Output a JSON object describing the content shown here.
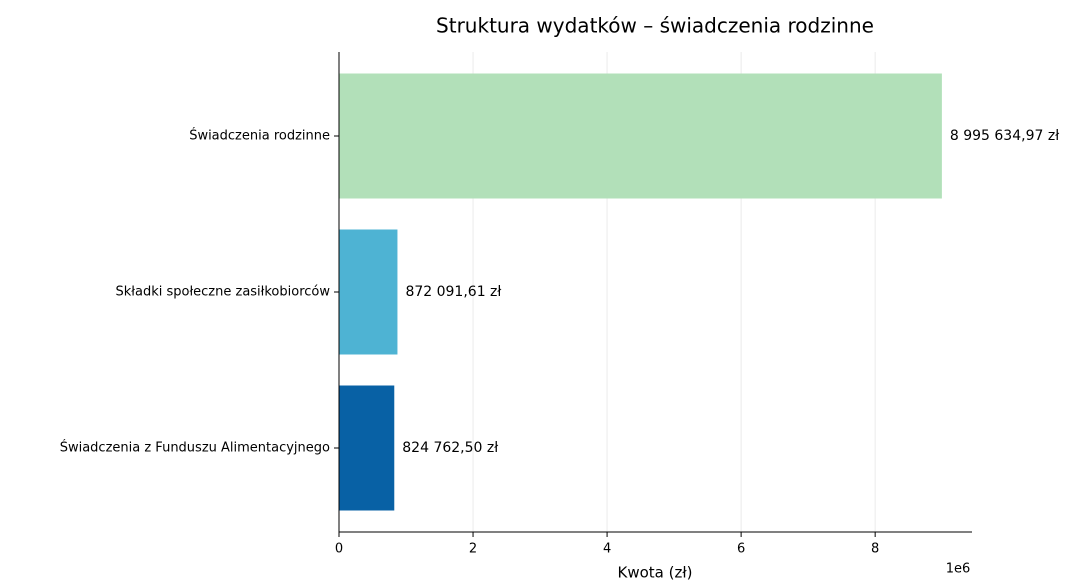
{
  "chart_data": {
    "type": "barh",
    "title": "Struktura wydatków – świadczenia rodzinne",
    "x_label": "Kwota (zł)",
    "x_offset_label": "1e6",
    "categories": [
      "Świadczenia rodzinne",
      "Składki społeczne zasiłkobiorców",
      "Świadczenia z Funduszu Alimentacyjnego"
    ],
    "values": [
      8995634.97,
      872091.61,
      824762.5
    ],
    "value_labels": [
      "8 995 634,97 zł",
      "872 091,61 zł",
      "824 762,50 zł"
    ],
    "colors": [
      "#b2e0b9",
      "#4eb3d3",
      "#0861a5"
    ],
    "xlim": [
      0,
      9445000
    ],
    "xticks": [
      0,
      {
        "value": 2000000,
        "label": "2"
      },
      {
        "value": 4000000,
        "label": "4"
      },
      {
        "value": 6000000,
        "label": "6"
      },
      {
        "value": 8000000,
        "label": "8"
      }
    ],
    "grid": true
  }
}
